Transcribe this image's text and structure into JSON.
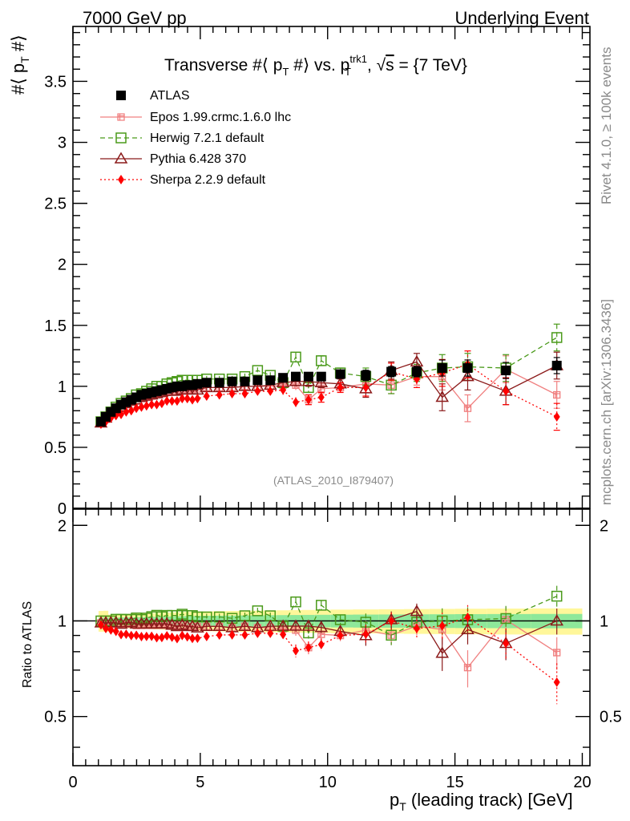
{
  "header": {
    "left": "7000 GeV pp",
    "right": "Underlying Event"
  },
  "side": {
    "rivet": "Rivet 4.1.0, ≥ 100k events",
    "mcplots": "mcplots.cern.ch [arXiv:1306.3436]"
  },
  "watermark": "(ATLAS_2010_I879407)",
  "chart_data": {
    "type": "scatter",
    "title": "Transverse #⟨ p_T #⟩ vs. p_T^trk1, √s = {7 TeV}",
    "title_parts": {
      "a": "Transverse #⟨ p",
      "a_sub": "T",
      "b": " #⟩ vs. p",
      "b_sup": "trk1",
      "b_sub": "T",
      "c": ", √",
      "c_over": "s",
      "d": " = {7 TeV}"
    },
    "ylabel": {
      "a": "#⟨ p",
      "sub": "T",
      "b": " #⟩"
    },
    "xlabel": {
      "a": "p",
      "sub": "T",
      "b": " (leading track) [GeV]"
    },
    "ratio_ylabel": "Ratio to ATLAS",
    "xlim": [
      0,
      20.3
    ],
    "ylim": [
      0,
      3.95
    ],
    "ratio_ylim": [
      0.35,
      2.25
    ],
    "x_ticks": [
      "0",
      "5",
      "10",
      "15",
      "20"
    ],
    "y_ticks": [
      "0",
      "0.5",
      "1",
      "1.5",
      "2",
      "2.5",
      "3",
      "3.5"
    ],
    "ratio_y_ticks": [
      "0.5",
      "1",
      "2"
    ],
    "x": [
      1.1,
      1.29,
      1.49,
      1.69,
      1.89,
      2.09,
      2.29,
      2.49,
      2.69,
      2.89,
      3.09,
      3.29,
      3.49,
      3.69,
      3.89,
      4.09,
      4.29,
      4.49,
      4.69,
      4.89,
      5.25,
      5.75,
      6.25,
      6.75,
      7.25,
      7.75,
      8.25,
      8.75,
      9.25,
      9.75,
      10.5,
      11.5,
      12.5,
      13.5,
      14.5,
      15.5,
      17.0,
      19.0
    ],
    "series": [
      {
        "name": "ATLAS",
        "color": "#000000",
        "values": [
          0.71,
          0.75,
          0.79,
          0.82,
          0.85,
          0.87,
          0.89,
          0.91,
          0.93,
          0.94,
          0.95,
          0.96,
          0.97,
          0.98,
          0.99,
          1.0,
          1.0,
          1.01,
          1.01,
          1.02,
          1.03,
          1.03,
          1.04,
          1.04,
          1.05,
          1.05,
          1.07,
          1.08,
          1.08,
          1.08,
          1.1,
          1.09,
          1.12,
          1.12,
          1.15,
          1.15,
          1.13,
          1.17
        ]
      },
      {
        "name": "Epos 1.99.crmc.1.6.0 lhc",
        "color": "#f08080",
        "values": [
          0.7,
          0.73,
          0.77,
          0.8,
          0.83,
          0.85,
          0.87,
          0.88,
          0.9,
          0.91,
          0.92,
          0.93,
          0.94,
          0.95,
          0.96,
          0.96,
          0.97,
          0.97,
          0.97,
          0.98,
          0.99,
          0.99,
          0.99,
          1.0,
          1.0,
          1.0,
          1.01,
          1.01,
          0.89,
          0.98,
          0.99,
          1.02,
          1.01,
          1.08,
          1.08,
          0.82,
          1.14,
          0.93
        ]
      },
      {
        "name": "Herwig 7.2.1 default",
        "color": "#4a9a1a",
        "values": [
          0.71,
          0.75,
          0.79,
          0.83,
          0.86,
          0.88,
          0.9,
          0.93,
          0.94,
          0.96,
          0.98,
          1.0,
          1.0,
          1.02,
          1.03,
          1.04,
          1.05,
          1.05,
          1.05,
          1.05,
          1.06,
          1.06,
          1.06,
          1.08,
          1.13,
          1.09,
          1.03,
          1.24,
          0.99,
          1.21,
          1.11,
          1.08,
          1.01,
          1.11,
          1.15,
          1.16,
          1.15,
          1.4
        ]
      },
      {
        "name": "Pythia 6.428 370",
        "color": "#8b1a1a",
        "values": [
          0.7,
          0.74,
          0.78,
          0.81,
          0.83,
          0.86,
          0.88,
          0.89,
          0.91,
          0.92,
          0.93,
          0.94,
          0.95,
          0.96,
          0.96,
          0.96,
          0.97,
          0.97,
          0.97,
          0.97,
          0.99,
          0.99,
          0.99,
          1.0,
          1.0,
          1.01,
          1.03,
          1.04,
          1.04,
          1.03,
          1.02,
          0.98,
          1.13,
          1.2,
          0.91,
          1.08,
          0.96,
          1.17
        ]
      },
      {
        "name": "Sherpa 2.2.9 default",
        "color": "#ff0000",
        "values": [
          0.69,
          0.71,
          0.74,
          0.76,
          0.77,
          0.79,
          0.8,
          0.82,
          0.83,
          0.84,
          0.85,
          0.85,
          0.86,
          0.88,
          0.88,
          0.88,
          0.9,
          0.9,
          0.89,
          0.9,
          0.92,
          0.93,
          0.94,
          0.94,
          0.96,
          0.96,
          0.97,
          0.87,
          0.89,
          0.91,
          0.99,
          0.99,
          1.12,
          1.06,
          1.11,
          1.18,
          0.96,
          0.75
        ]
      }
    ]
  }
}
